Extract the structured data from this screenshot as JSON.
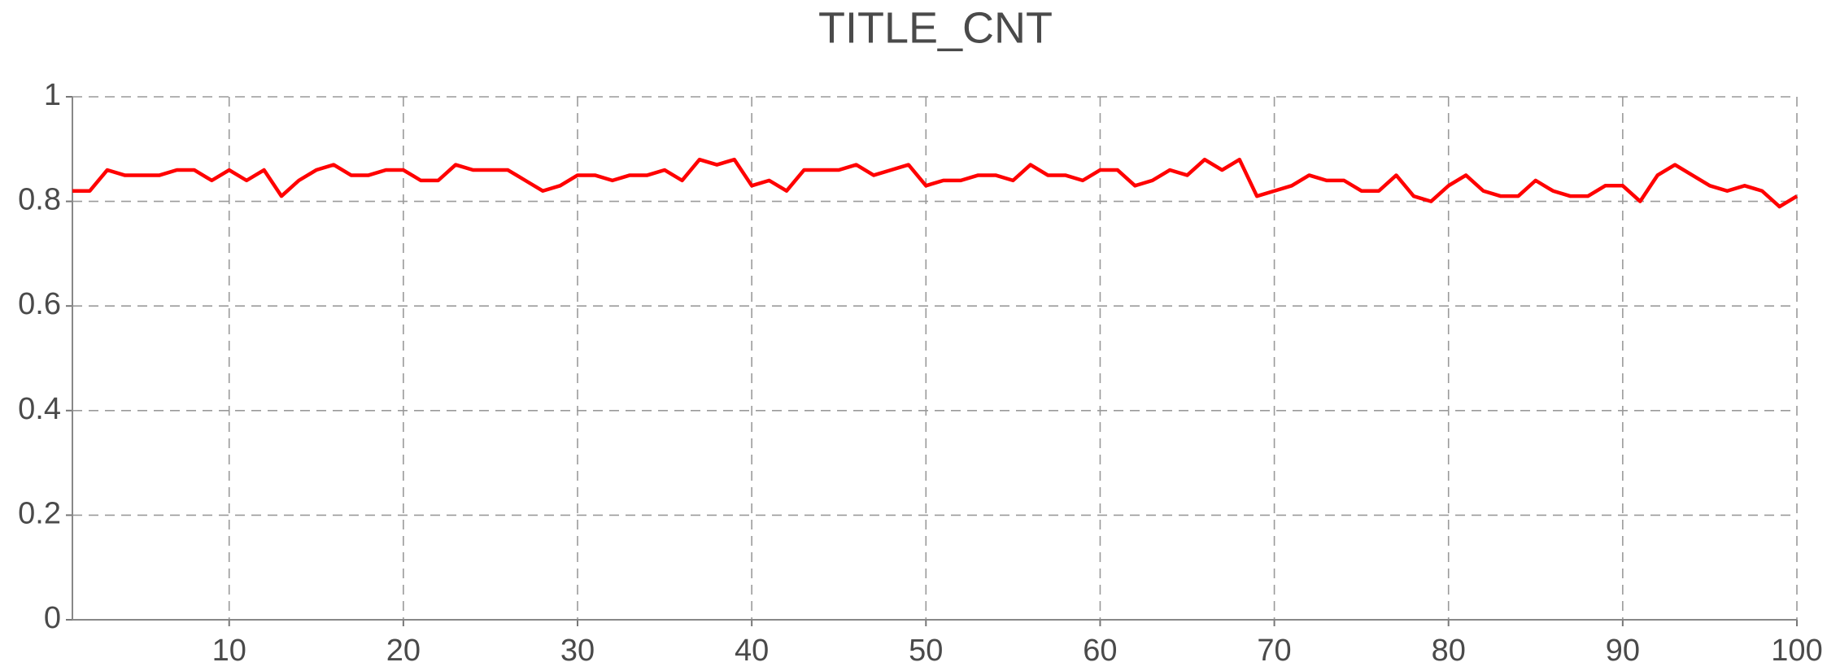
{
  "chart_data": {
    "type": "line",
    "title": "TITLE_CNT",
    "x": [
      1,
      2,
      3,
      4,
      5,
      6,
      7,
      8,
      9,
      10,
      11,
      12,
      13,
      14,
      15,
      16,
      17,
      18,
      19,
      20,
      21,
      22,
      23,
      24,
      25,
      26,
      27,
      28,
      29,
      30,
      31,
      32,
      33,
      34,
      35,
      36,
      37,
      38,
      39,
      40,
      41,
      42,
      43,
      44,
      45,
      46,
      47,
      48,
      49,
      50,
      51,
      52,
      53,
      54,
      55,
      56,
      57,
      58,
      59,
      60,
      61,
      62,
      63,
      64,
      65,
      66,
      67,
      68,
      69,
      70,
      71,
      72,
      73,
      74,
      75,
      76,
      77,
      78,
      79,
      80,
      81,
      82,
      83,
      84,
      85,
      86,
      87,
      88,
      89,
      90,
      91,
      92,
      93,
      94,
      95,
      96,
      97,
      98,
      99,
      100
    ],
    "series": [
      {
        "color": "#ff0000",
        "values": [
          0.82,
          0.82,
          0.86,
          0.85,
          0.85,
          0.85,
          0.86,
          0.86,
          0.84,
          0.86,
          0.84,
          0.86,
          0.81,
          0.84,
          0.86,
          0.87,
          0.85,
          0.85,
          0.86,
          0.86,
          0.84,
          0.84,
          0.87,
          0.86,
          0.86,
          0.86,
          0.84,
          0.82,
          0.83,
          0.85,
          0.85,
          0.84,
          0.85,
          0.85,
          0.86,
          0.84,
          0.88,
          0.87,
          0.88,
          0.83,
          0.84,
          0.82,
          0.86,
          0.86,
          0.86,
          0.87,
          0.85,
          0.86,
          0.87,
          0.83,
          0.84,
          0.84,
          0.85,
          0.85,
          0.84,
          0.87,
          0.85,
          0.85,
          0.84,
          0.86,
          0.86,
          0.83,
          0.84,
          0.86,
          0.85,
          0.88,
          0.86,
          0.88,
          0.81,
          0.82,
          0.83,
          0.85,
          0.84,
          0.84,
          0.82,
          0.82,
          0.85,
          0.81,
          0.8,
          0.83,
          0.85,
          0.82,
          0.81,
          0.81,
          0.84,
          0.82,
          0.81,
          0.81,
          0.83,
          0.83,
          0.8,
          0.85,
          0.87,
          0.85,
          0.83,
          0.82,
          0.83,
          0.82,
          0.79,
          0.81
        ]
      }
    ],
    "xlim": [
      1,
      100
    ],
    "xticks": [
      10,
      20,
      30,
      40,
      50,
      60,
      70,
      80,
      90,
      100
    ],
    "ylim": [
      0,
      1
    ],
    "yticks": [
      0,
      0.2,
      0.4,
      0.6,
      0.8,
      1
    ],
    "grid": true
  }
}
